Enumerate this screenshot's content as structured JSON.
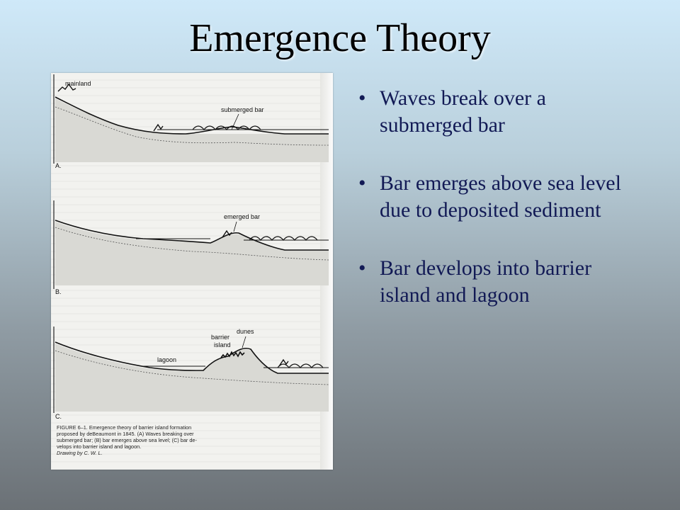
{
  "slide": {
    "title": "Emergence Theory"
  },
  "figure": {
    "panels": [
      {
        "letter": "A.",
        "labels": [
          "mainland",
          "submerged bar"
        ]
      },
      {
        "letter": "B.",
        "labels": [
          "emerged bar"
        ]
      },
      {
        "letter": "C.",
        "labels": [
          "lagoon",
          "barrier",
          "island",
          "dunes"
        ]
      }
    ],
    "caption_lines": [
      "FIGURE 6–1. Emergence theory of barrier island formation",
      "proposed by deBeaumont in 1845. (A) Waves breaking over",
      "submerged bar; (B) bar emerges above sea level; (C) bar de-",
      "velops into barrier island and lagoon."
    ],
    "credit": "Drawing by C. W. L."
  },
  "bullets": [
    "Waves break over a submerged bar",
    "Bar emerges above sea level due to deposited sediment",
    "Bar develops into barrier island and lagoon"
  ]
}
